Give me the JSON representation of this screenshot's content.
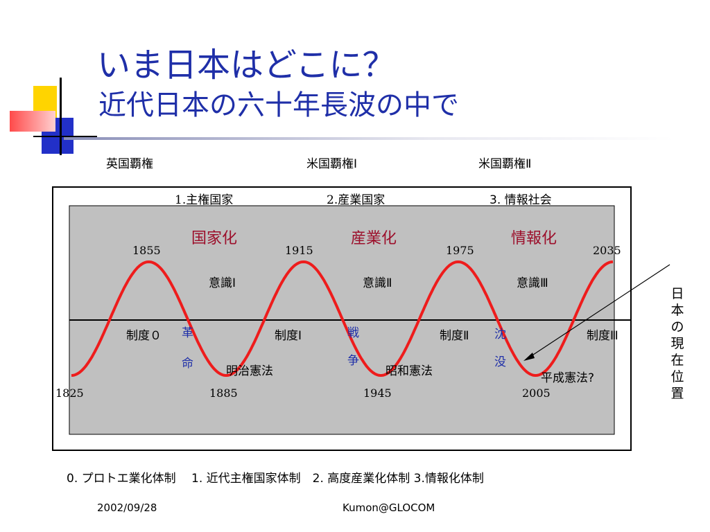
{
  "slide": {
    "title_line1": "いま日本はどこに？",
    "title_line2": "近代日本の六十年長波の中で"
  },
  "hegemony": [
    "英国覇権",
    "米国覇権Ⅰ",
    "米国覇権Ⅱ"
  ],
  "systems": [
    "1.主権国家",
    "2.産業国家",
    "3. 情報社会"
  ],
  "phases": [
    "国家化",
    "産業化",
    "情報化"
  ],
  "peak_years": [
    "1855",
    "1915",
    "1975",
    "2035"
  ],
  "trough_years": [
    "1825",
    "1885",
    "1945",
    "2005"
  ],
  "consciousness": [
    "意識Ⅰ",
    "意識Ⅱ",
    "意識Ⅲ"
  ],
  "institutions": [
    "制度０",
    "制度Ⅰ",
    "制度Ⅱ",
    "制度Ⅲ"
  ],
  "events": [
    {
      "top": "革",
      "bottom": "命"
    },
    {
      "top": "戦",
      "bottom": "争"
    },
    {
      "top": "沈",
      "bottom": "没"
    }
  ],
  "constitutions": [
    "明治憲法",
    "昭和憲法",
    "平成憲法?"
  ],
  "current_position_label": "日本の現在位置",
  "bottom_regimes": "0. プロトエ業化体制　 1. 近代主権国家体制　2. 高度産業化体制  3.情報化体制",
  "footer": {
    "date": "2002/09/28",
    "author": "Kumon@GLOCOM"
  },
  "chart_data": {
    "type": "line",
    "period_years": 60,
    "peaks": [
      1855,
      1915,
      1975,
      2035
    ],
    "troughs": [
      1825,
      1885,
      1945,
      2005
    ],
    "x_range": [
      1825,
      2035
    ],
    "colors": {
      "wave": "#ee1c1c",
      "panel": "#c0c0c0",
      "title": "#1f2fa8",
      "phase": "#9c0f2b"
    }
  }
}
